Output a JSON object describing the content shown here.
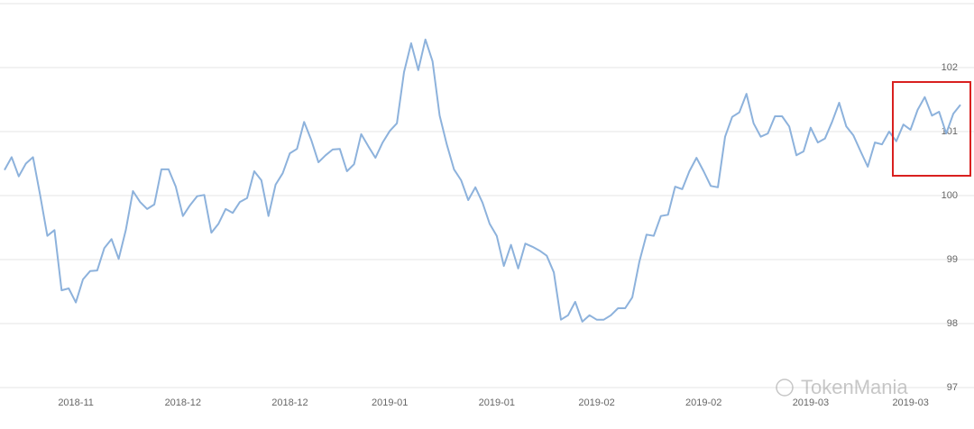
{
  "chart_data": {
    "type": "line",
    "categories": [
      null,
      null,
      null,
      null,
      null,
      null,
      null,
      null,
      null,
      null,
      "2018-11",
      null,
      null,
      null,
      null,
      null,
      null,
      null,
      null,
      null,
      null,
      null,
      null,
      null,
      null,
      "2018-12",
      null,
      null,
      null,
      null,
      null,
      null,
      null,
      null,
      null,
      null,
      null,
      null,
      null,
      null,
      "2018-12",
      null,
      null,
      null,
      null,
      null,
      null,
      null,
      null,
      null,
      null,
      null,
      null,
      null,
      "2019-01",
      null,
      null,
      null,
      null,
      null,
      null,
      null,
      null,
      null,
      null,
      null,
      null,
      null,
      null,
      "2019-01",
      null,
      null,
      null,
      null,
      null,
      null,
      null,
      null,
      null,
      null,
      null,
      null,
      null,
      "2019-02",
      null,
      null,
      null,
      null,
      null,
      null,
      null,
      null,
      null,
      null,
      null,
      null,
      null,
      null,
      "2019-02",
      null,
      null,
      null,
      null,
      null,
      null,
      null,
      null,
      null,
      null,
      null,
      null,
      null,
      null,
      "2019-03",
      null,
      null,
      null,
      null,
      null,
      null,
      null,
      null,
      null,
      null,
      null,
      null,
      null,
      "2019-03",
      null,
      null,
      null,
      null,
      null,
      null,
      null
    ],
    "series": [
      {
        "name": null,
        "color": "#8db2dc",
        "values": [
          100.4,
          100.6,
          100.3,
          100.5,
          100.6,
          100.0,
          99.37,
          99.46,
          98.52,
          98.55,
          98.33,
          98.69,
          98.82,
          98.83,
          99.18,
          99.32,
          99.01,
          99.46,
          100.07,
          99.9,
          99.79,
          99.86,
          100.41,
          100.41,
          100.14,
          99.68,
          99.85,
          99.99,
          100.01,
          99.42,
          99.56,
          99.79,
          99.73,
          99.9,
          99.96,
          100.38,
          100.24,
          99.68,
          100.17,
          100.35,
          100.66,
          100.73,
          101.15,
          100.87,
          100.52,
          100.63,
          100.72,
          100.73,
          100.38,
          100.49,
          100.96,
          100.77,
          100.59,
          100.83,
          101.01,
          101.13,
          101.93,
          102.38,
          101.96,
          102.44,
          102.1,
          101.25,
          100.8,
          100.41,
          100.24,
          99.93,
          100.13,
          99.89,
          99.56,
          99.37,
          98.9,
          99.23,
          98.86,
          99.25,
          99.2,
          99.14,
          99.06,
          98.8,
          98.06,
          98.13,
          98.34,
          98.03,
          98.13,
          98.06,
          98.06,
          98.13,
          98.24,
          98.24,
          98.41,
          98.97,
          99.39,
          99.37,
          99.68,
          99.7,
          100.14,
          100.1,
          100.38,
          100.59,
          100.38,
          100.15,
          100.13,
          100.92,
          101.23,
          101.3,
          101.59,
          101.13,
          100.92,
          100.97,
          101.24,
          101.24,
          101.08,
          100.63,
          100.69,
          101.06,
          100.83,
          100.89,
          101.15,
          101.45,
          101.08,
          100.94,
          100.69,
          100.45,
          100.83,
          100.8,
          101.0,
          100.85,
          101.11,
          101.03,
          101.34,
          101.54,
          101.25,
          101.31,
          100.97,
          101.28,
          101.42
        ]
      }
    ],
    "ylim": [
      97,
      103
    ],
    "yticks": [
      97,
      98,
      99,
      100,
      101,
      102
    ],
    "grid": true,
    "watermark": "TokenMania"
  }
}
